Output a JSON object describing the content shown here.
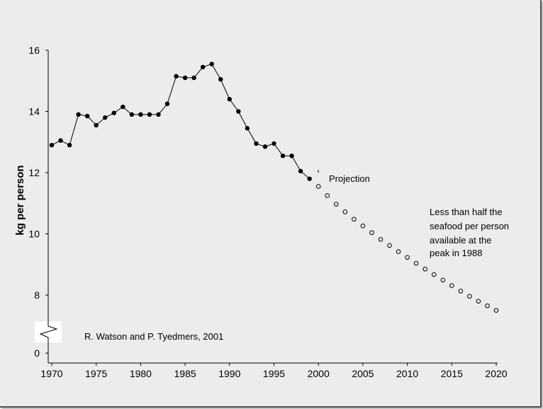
{
  "chart_data": {
    "type": "line",
    "ylabel": "kg per person",
    "xlabel": "",
    "title": "",
    "xlim": [
      1970,
      2020
    ],
    "ylim_main": [
      8,
      16
    ],
    "y_ticks": [
      "0",
      "8",
      "10",
      "12",
      "14",
      "16"
    ],
    "x_ticks": [
      "1970",
      "1975",
      "1980",
      "1985",
      "1990",
      "1995",
      "2000",
      "2005",
      "2010",
      "2015",
      "2020"
    ],
    "axis_break": true,
    "grid": false,
    "colors": {
      "line": "#000000",
      "background": "#ececec",
      "frame_border": "#555555"
    },
    "series": [
      {
        "marker": "filled-circle",
        "x": [
          1970,
          1971,
          1972,
          1973,
          1974,
          1975,
          1976,
          1977,
          1978,
          1979,
          1980,
          1981,
          1982,
          1983,
          1984,
          1985,
          1986,
          1987,
          1988,
          1989,
          1990,
          1991,
          1992,
          1993,
          1994,
          1995,
          1996,
          1997,
          1998,
          1999
        ],
        "y": [
          12.9,
          13.05,
          12.9,
          13.9,
          13.85,
          13.55,
          13.8,
          13.95,
          14.15,
          13.9,
          13.9,
          13.9,
          13.9,
          14.25,
          15.15,
          15.1,
          15.1,
          15.45,
          15.55,
          15.05,
          14.4,
          14.0,
          13.45,
          12.95,
          12.85,
          12.95,
          12.55,
          12.55,
          12.05,
          11.8
        ]
      },
      {
        "name": "Projection",
        "marker": "open-circle",
        "x": [
          2000,
          2001,
          2002,
          2003,
          2004,
          2005,
          2006,
          2007,
          2008,
          2009,
          2010,
          2011,
          2012,
          2013,
          2014,
          2015,
          2016,
          2017,
          2018,
          2019,
          2020
        ],
        "y": [
          11.55,
          11.25,
          10.97,
          10.72,
          10.48,
          10.26,
          10.04,
          9.82,
          9.62,
          9.42,
          9.23,
          9.04,
          8.85,
          8.67,
          8.49,
          8.31,
          8.13,
          7.96,
          7.8,
          7.65,
          7.5
        ]
      }
    ],
    "annotations": {
      "projection": "Projection",
      "note_lines": [
        "Less than half the",
        "seafood per person",
        "available at the",
        "peak in 1988"
      ],
      "credit": "R. Watson and P. Tyedmers, 2001"
    }
  }
}
